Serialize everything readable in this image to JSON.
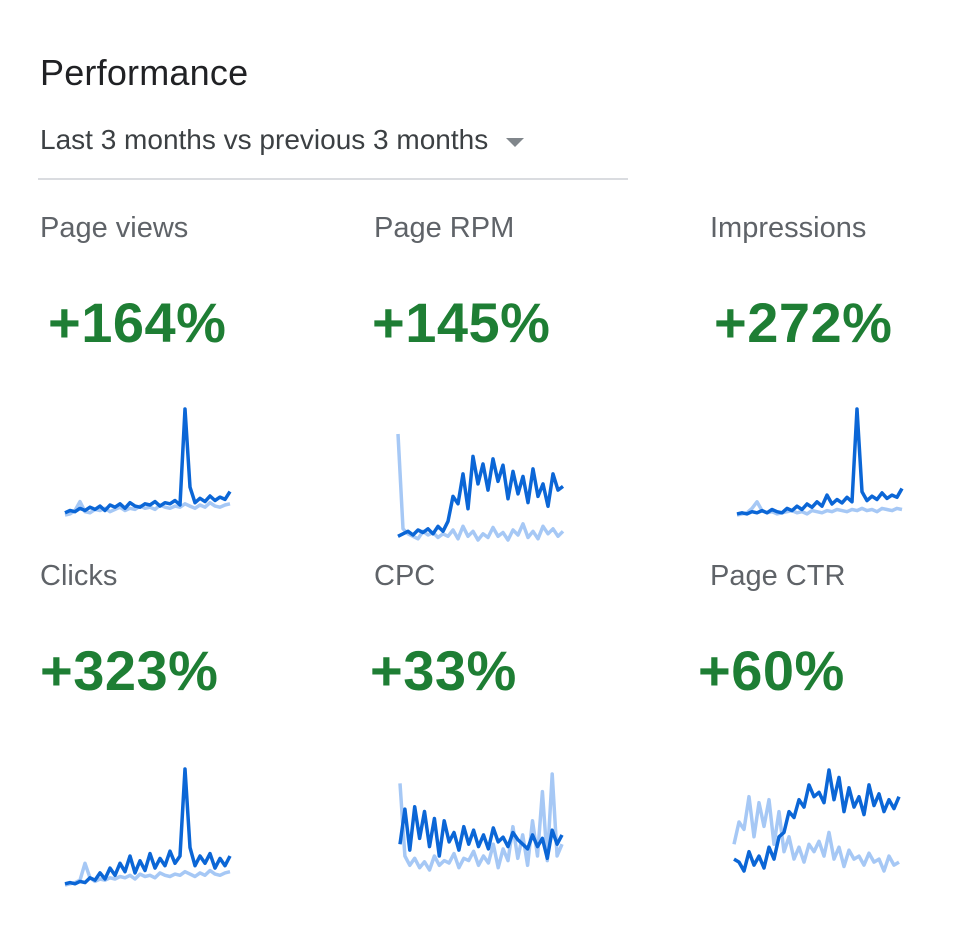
{
  "header": {
    "title": "Performance",
    "range_label": "Last 3 months vs previous 3 months"
  },
  "colors": {
    "positive": "#1e7e34",
    "current_series": "#0b66d6",
    "previous_series": "#a6c8f5"
  },
  "metrics": [
    {
      "label": "Page views",
      "value": "+164%",
      "current": [
        7,
        9,
        8,
        11,
        9,
        12,
        10,
        13,
        9,
        14,
        12,
        15,
        11,
        16,
        13,
        12,
        15,
        14,
        17,
        13,
        16,
        15,
        18,
        14,
        100,
        30,
        16,
        20,
        17,
        22,
        18,
        21,
        19,
        26
      ],
      "previous": [
        5,
        6,
        9,
        17,
        8,
        7,
        10,
        9,
        11,
        8,
        10,
        12,
        9,
        11,
        10,
        13,
        11,
        12,
        10,
        14,
        12,
        11,
        13,
        12,
        15,
        13,
        11,
        14,
        12,
        16,
        13,
        12,
        14,
        15
      ]
    },
    {
      "label": "Page RPM",
      "value": "+145%",
      "current": [
        18,
        20,
        22,
        19,
        23,
        21,
        24,
        20,
        26,
        22,
        30,
        50,
        44,
        68,
        40,
        82,
        60,
        76,
        55,
        80,
        62,
        75,
        48,
        70,
        52,
        66,
        45,
        72,
        50,
        60,
        42,
        68,
        55,
        58
      ],
      "previous": [
        100,
        24,
        20,
        18,
        16,
        22,
        19,
        21,
        17,
        20,
        18,
        23,
        16,
        26,
        18,
        22,
        15,
        20,
        17,
        25,
        18,
        21,
        15,
        23,
        19,
        28,
        17,
        22,
        16,
        26,
        20,
        24,
        18,
        22
      ]
    },
    {
      "label": "Impressions",
      "value": "+272%",
      "current": [
        5,
        6,
        5,
        7,
        6,
        8,
        6,
        9,
        7,
        6,
        10,
        8,
        12,
        9,
        14,
        11,
        16,
        12,
        22,
        14,
        18,
        15,
        20,
        16,
        100,
        25,
        17,
        21,
        18,
        24,
        19,
        22,
        20,
        28
      ],
      "previous": [
        4,
        5,
        6,
        10,
        16,
        8,
        6,
        7,
        5,
        6,
        7,
        8,
        6,
        7,
        5,
        8,
        7,
        6,
        8,
        7,
        9,
        8,
        7,
        9,
        8,
        10,
        8,
        9,
        7,
        10,
        9,
        8,
        10,
        9
      ]
    },
    {
      "label": "Clicks",
      "value": "+323%",
      "current": [
        5,
        6,
        5,
        7,
        6,
        10,
        8,
        14,
        9,
        18,
        12,
        22,
        15,
        28,
        14,
        24,
        16,
        30,
        18,
        26,
        20,
        32,
        22,
        28,
        100,
        35,
        20,
        28,
        22,
        30,
        18,
        26,
        20,
        28
      ],
      "previous": [
        4,
        5,
        6,
        8,
        22,
        10,
        7,
        9,
        8,
        10,
        9,
        11,
        10,
        12,
        9,
        13,
        11,
        12,
        10,
        14,
        12,
        11,
        13,
        12,
        15,
        13,
        11,
        14,
        12,
        16,
        13,
        12,
        14,
        15
      ]
    },
    {
      "label": "CPC",
      "value": "+33%",
      "current": [
        40,
        70,
        35,
        72,
        45,
        68,
        38,
        62,
        30,
        60,
        42,
        50,
        35,
        55,
        40,
        52,
        38,
        48,
        36,
        54,
        42,
        46,
        38,
        50,
        44,
        40,
        36,
        48,
        38,
        45,
        28,
        52,
        40,
        48
      ],
      "previous": [
        92,
        30,
        22,
        28,
        20,
        25,
        18,
        30,
        22,
        26,
        24,
        32,
        20,
        28,
        26,
        34,
        22,
        30,
        24,
        40,
        20,
        36,
        26,
        55,
        28,
        48,
        22,
        60,
        30,
        85,
        26,
        100,
        30,
        40
      ]
    },
    {
      "label": "Page CTR",
      "value": "+60%",
      "current": [
        30,
        28,
        22,
        35,
        26,
        32,
        24,
        38,
        30,
        45,
        48,
        62,
        58,
        70,
        65,
        80,
        72,
        75,
        68,
        90,
        70,
        85,
        62,
        78,
        65,
        72,
        60,
        80,
        66,
        74,
        62,
        70,
        64,
        72
      ],
      "previous": [
        40,
        55,
        50,
        72,
        45,
        68,
        52,
        70,
        40,
        62,
        35,
        45,
        30,
        38,
        28,
        40,
        35,
        42,
        32,
        48,
        30,
        38,
        25,
        36,
        30,
        32,
        26,
        34,
        28,
        30,
        22,
        32,
        26,
        28
      ]
    }
  ]
}
